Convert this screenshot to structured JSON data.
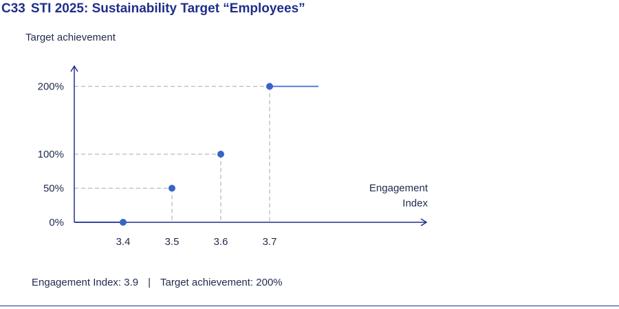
{
  "title": {
    "number": "C33",
    "text": "STI 2025: Sustainability Target “Employees”"
  },
  "chart_data": {
    "type": "line",
    "xlabel": "Engagement Index",
    "ylabel": "Target achievement",
    "xlim": [
      3.3,
      3.9
    ],
    "x_ticks": [
      "3.4",
      "3.5",
      "3.6",
      "3.7"
    ],
    "y_ticks": [
      "0%",
      "50%",
      "100%",
      "200%"
    ],
    "y_tick_values": [
      0,
      50,
      100,
      200
    ],
    "series": [
      {
        "values": [
          {
            "x": 3.3,
            "y": 0
          },
          {
            "x": 3.4,
            "y": 0
          },
          {
            "x": 3.5,
            "y": 50
          },
          {
            "x": 3.6,
            "y": 100
          },
          {
            "x": 3.7,
            "y": 200
          },
          {
            "x": 3.8,
            "y": 200
          }
        ]
      }
    ],
    "colors": {
      "line": "#3f6ad8",
      "point": "#3a63c9",
      "guide": "#b9b9b9",
      "axis": "#1e2f8a"
    }
  },
  "footer": {
    "left": "Engagement Index: 3.9",
    "separator": "|",
    "right": "Target achievement: 200%"
  }
}
